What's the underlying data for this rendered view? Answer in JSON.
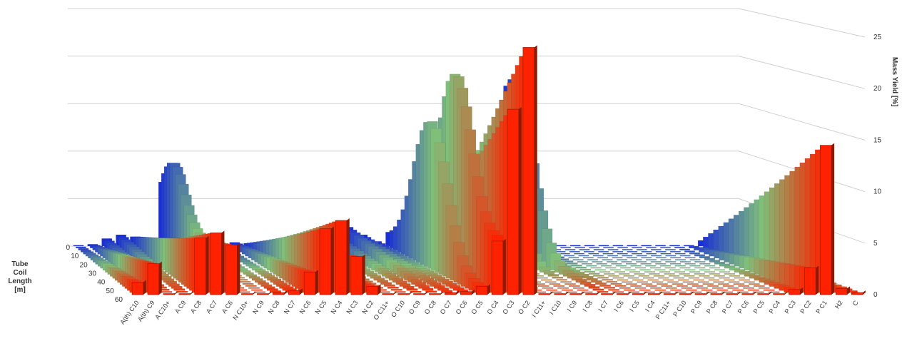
{
  "chart_data": {
    "type": "bar",
    "title": "",
    "ylabel": "Mass Yield [%]",
    "zlabel_lines": [
      "Tube",
      "Coil",
      "Length",
      "[m]"
    ],
    "ylim": [
      0,
      25
    ],
    "yticks": [
      0,
      5,
      10,
      15,
      20,
      25
    ],
    "depth_axis": [
      0,
      10,
      20,
      30,
      40,
      50,
      60
    ],
    "categories": [
      "A(th) C10",
      "A(th) C9",
      "A C10+",
      "A C9",
      "A C8",
      "A C7",
      "A C6",
      "N C10+",
      "N C9",
      "N C8",
      "N C7",
      "N C6",
      "N C5",
      "N C4",
      "N C3",
      "N C2",
      "O C11+",
      "O C10",
      "O C9",
      "O C8",
      "O C7",
      "O C6",
      "O C5",
      "O C4",
      "O C3",
      "O C2",
      "I C11+",
      "I C10",
      "I C9",
      "I C8",
      "I C7",
      "I C6",
      "I C5",
      "I C4",
      "P C11+",
      "P C10",
      "P C9",
      "P C8",
      "P C7",
      "P C6",
      "P C5",
      "P C4",
      "P C3",
      "P C2",
      "P C1",
      "H2",
      "C"
    ],
    "series": [
      {
        "length": 0,
        "values": [
          0.1,
          0.2,
          0.8,
          1.2,
          1.0,
          0.5,
          1.8,
          0.3,
          0.2,
          0.2,
          0.2,
          0.4,
          0.3,
          0.3,
          0.6,
          0.5,
          0.4,
          0.7,
          1.3,
          2.0,
          1.2,
          0.5,
          1.0,
          0.8,
          0.4,
          0.3,
          0.1,
          0.1,
          0.1,
          0.1,
          1.0,
          0.5,
          0.2,
          0.1,
          0.1,
          0.1,
          0.1,
          0.1,
          0.1,
          0.1,
          0.1,
          0.1,
          0.1,
          0.1,
          0.6,
          0.1,
          0.1
        ]
      },
      {
        "length": 60,
        "values": [
          1.2,
          3.0,
          0.1,
          0.1,
          5.5,
          6.0,
          4.8,
          0.1,
          0.1,
          0.2,
          0.4,
          2.2,
          6.4,
          7.2,
          3.7,
          0.8,
          0.1,
          0.1,
          0.1,
          0.1,
          0.2,
          0.3,
          0.8,
          5.2,
          18.0,
          24.0,
          0.1,
          0.1,
          0.1,
          0.1,
          0.1,
          0.1,
          0.1,
          0.1,
          0.1,
          0.1,
          0.1,
          0.1,
          0.1,
          0.1,
          0.1,
          0.1,
          0.5,
          2.6,
          14.5,
          0.6,
          0.2
        ]
      }
    ],
    "profile_peaks": [
      {
        "category": "A C6",
        "value": 12.0,
        "position": 0.15
      },
      {
        "category": "O C5",
        "value": 15.0,
        "position": 0.45
      },
      {
        "category": "O C4",
        "value": 22.0,
        "position": 0.55
      },
      {
        "category": "O C3",
        "value": 10.0,
        "position": 0.5
      },
      {
        "category": "I C8",
        "value": 12.0,
        "position": 0.1
      },
      {
        "category": "I C7",
        "value": 18.0,
        "position": 0.1
      },
      {
        "category": "P C1",
        "value": 14.5,
        "position": 1.0
      }
    ],
    "colors": {
      "blue": "#1a2fd6",
      "green": "#7fbf7a",
      "red": "#ff2200",
      "dark_red": "#8b1a00"
    },
    "grid": true,
    "legend": "none"
  }
}
